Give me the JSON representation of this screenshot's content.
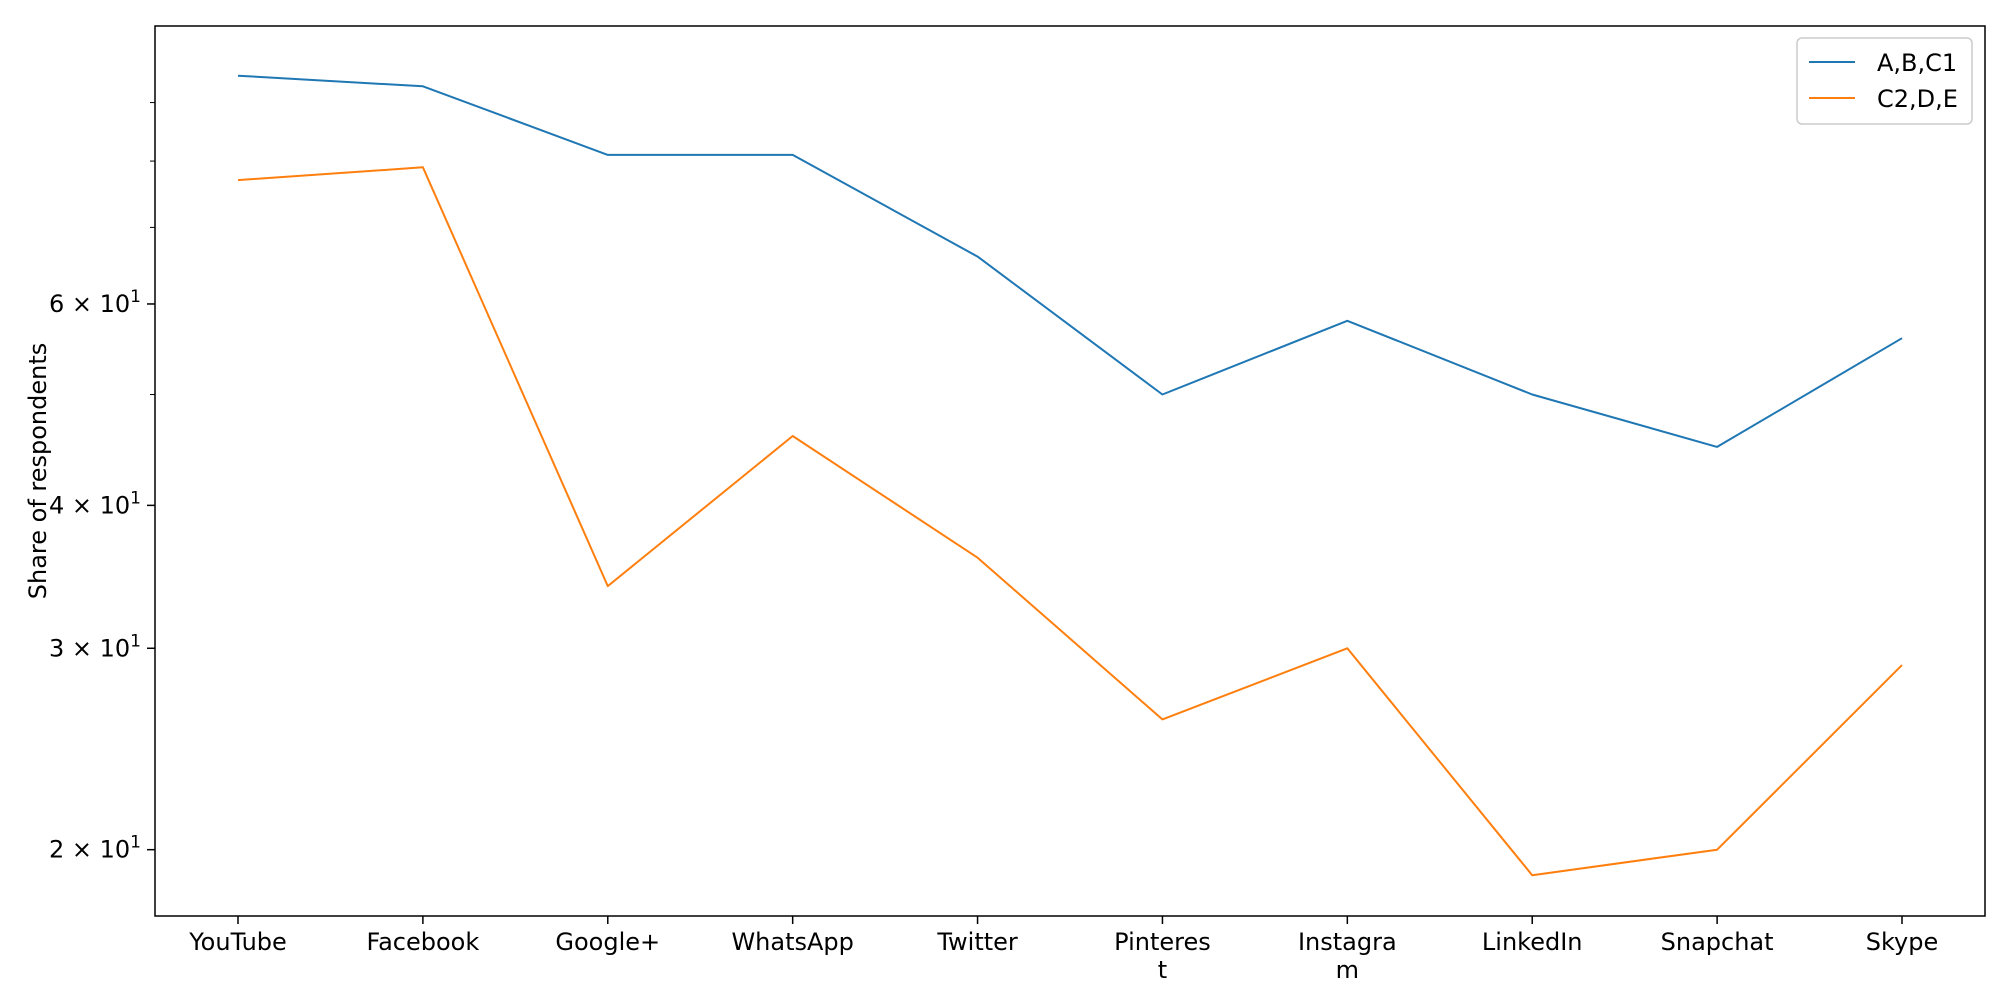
{
  "chart_data": {
    "type": "line",
    "title": "",
    "xlabel": "",
    "ylabel": "Share of respondents",
    "yscale": "log",
    "ylim": [
      17.5,
      105
    ],
    "grid": false,
    "legend_position": "top-right",
    "categories": [
      [
        "YouTube"
      ],
      [
        "Facebook"
      ],
      [
        "Google+"
      ],
      [
        "WhatsApp"
      ],
      [
        "Twitter"
      ],
      [
        "Pinteres",
        "t"
      ],
      [
        "Instagra",
        "m"
      ],
      [
        "LinkedIn"
      ],
      [
        "Snapchat"
      ],
      [
        "Skype"
      ]
    ],
    "series": [
      {
        "name": "A,B,C1",
        "color": "#1f77b4",
        "values": [
          95,
          93,
          81,
          81,
          66,
          50,
          58,
          50,
          45,
          56
        ]
      },
      {
        "name": "C2,D,E",
        "color": "#ff7f0e",
        "values": [
          77,
          79,
          34,
          46,
          36,
          26,
          30,
          19,
          20,
          29
        ]
      }
    ],
    "y_ticks": [
      {
        "value": 20,
        "mantissa": "2",
        "base": "10",
        "exponent": "1"
      },
      {
        "value": 30,
        "mantissa": "3",
        "base": "10",
        "exponent": "1"
      },
      {
        "value": 40,
        "mantissa": "4",
        "base": "10",
        "exponent": "1"
      },
      {
        "value": 60,
        "mantissa": "6",
        "base": "10",
        "exponent": "1"
      }
    ],
    "y_minor_ticks": [
      50,
      70,
      80,
      90
    ]
  }
}
